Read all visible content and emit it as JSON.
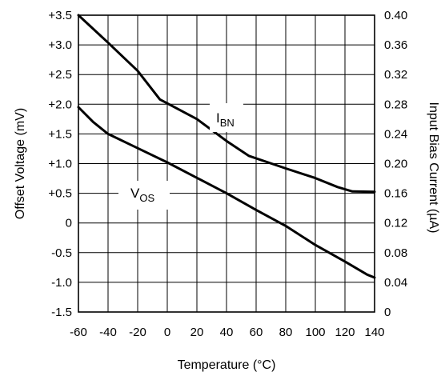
{
  "chart_data": {
    "type": "line",
    "xlabel": "Temperature (°C)",
    "ylabel_left": "Offset Voltage (mV)",
    "ylabel_right": "Input Bias Current (µA)",
    "xlim": [
      -60,
      140
    ],
    "ylim_left": [
      -1.5,
      3.5
    ],
    "ylim_right": [
      0,
      0.4
    ],
    "x_tick_labels": [
      "-60",
      "-40",
      "-20",
      "0",
      "20",
      "40",
      "60",
      "80",
      "100",
      "120",
      "140"
    ],
    "y_left_tick_labels": [
      "+3.5",
      "+3.0",
      "+2.5",
      "+2.0",
      "+1.5",
      "+1.0",
      "+0.5",
      "0",
      "-0.5",
      "-1.0",
      "-1.5"
    ],
    "y_right_tick_labels": [
      "0.40",
      "0.36",
      "0.32",
      "0.28",
      "0.24",
      "0.20",
      "0.16",
      "0.12",
      "0.08",
      "0.04",
      "0"
    ],
    "grid": true,
    "series": [
      {
        "name_main": "I",
        "name_sub": "BN",
        "axis": "right",
        "x": [
          -60,
          -40,
          -20,
          -5,
          20,
          40,
          55,
          80,
          100,
          115,
          125,
          140
        ],
        "y": [
          0.4,
          0.363,
          0.325,
          0.2865,
          0.26,
          0.2305,
          0.2105,
          0.1935,
          0.1805,
          0.1684,
          0.1625,
          0.162
        ]
      },
      {
        "name_main": "V",
        "name_sub": "OS",
        "axis": "left",
        "x": [
          -60,
          -50,
          -40,
          -20,
          0,
          20,
          40,
          60,
          80,
          100,
          120,
          135,
          140
        ],
        "y": [
          1.95,
          1.7,
          1.5,
          1.26,
          1.02,
          0.76,
          0.5,
          0.22,
          -0.05,
          -0.37,
          -0.65,
          -0.87,
          -0.92
        ]
      }
    ]
  }
}
